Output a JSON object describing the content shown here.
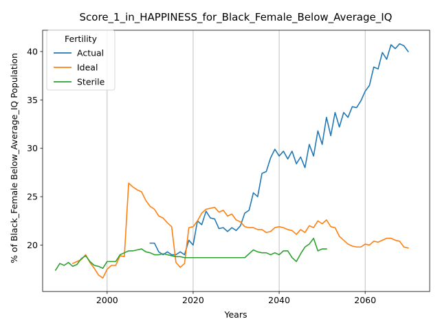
{
  "chart_data": {
    "type": "line",
    "title": "Score_1_in_HAPPINESS_for_Black_Female_Below_Average_IQ",
    "xlabel": "Years",
    "ylabel": "% of Black_Female Below_Average_IQ Population",
    "xlim": [
      1985,
      2075
    ],
    "ylim": [
      15.2,
      42.2
    ],
    "xticks": [
      2000,
      2020,
      2040,
      2060
    ],
    "yticks": [
      20,
      25,
      30,
      35,
      40
    ],
    "grid": "x-major",
    "legend": {
      "title": "Fertility",
      "placement": "top-left"
    },
    "colors": {
      "Actual": "#1f77b4",
      "Ideal": "#ff7f0e",
      "Sterile": "#2ca02c"
    },
    "series": [
      {
        "name": "Actual",
        "x": [
          2010,
          2011,
          2012,
          2013,
          2014,
          2015,
          2016,
          2017,
          2018,
          2019,
          2020,
          2021,
          2022,
          2023,
          2024,
          2025,
          2026,
          2027,
          2028,
          2029,
          2030,
          2031,
          2032,
          2033,
          2034,
          2035,
          2036,
          2037,
          2038,
          2039,
          2040,
          2041,
          2042,
          2043,
          2044,
          2045,
          2046,
          2047,
          2048,
          2049,
          2050,
          2051,
          2052,
          2053,
          2054,
          2055,
          2056,
          2057,
          2058,
          2059,
          2060,
          2061,
          2062,
          2063,
          2064,
          2065,
          2066,
          2067,
          2068,
          2069,
          2070
        ],
        "values": [
          20.2,
          20.2,
          19.3,
          19.0,
          19.3,
          19.0,
          19.0,
          19.3,
          19.0,
          20.5,
          20.0,
          22.5,
          22.1,
          23.5,
          22.8,
          22.7,
          21.7,
          21.8,
          21.4,
          21.8,
          21.5,
          22.0,
          23.3,
          23.6,
          25.4,
          25.0,
          27.4,
          27.6,
          29.0,
          29.9,
          29.2,
          29.7,
          28.9,
          29.7,
          28.4,
          29.1,
          28.0,
          30.4,
          29.2,
          31.8,
          30.4,
          33.2,
          31.3,
          33.7,
          32.2,
          33.7,
          33.2,
          34.3,
          34.2,
          34.9,
          35.9,
          36.5,
          38.4,
          38.2,
          39.9,
          39.2,
          40.7,
          40.3,
          40.8,
          40.6,
          40.0
        ]
      },
      {
        "name": "Ideal",
        "x": [
          1992,
          1993,
          1994,
          1995,
          1996,
          1997,
          1998,
          1999,
          2000,
          2001,
          2002,
          2003,
          2004,
          2005,
          2006,
          2007,
          2008,
          2009,
          2010,
          2011,
          2012,
          2013,
          2014,
          2015,
          2016,
          2017,
          2018,
          2019,
          2020,
          2021,
          2022,
          2023,
          2024,
          2025,
          2026,
          2027,
          2028,
          2029,
          2030,
          2031,
          2032,
          2033,
          2034,
          2035,
          2036,
          2037,
          2038,
          2039,
          2040,
          2041,
          2042,
          2043,
          2044,
          2045,
          2046,
          2047,
          2048,
          2049,
          2050,
          2051,
          2052,
          2053,
          2054,
          2055,
          2056,
          2057,
          2058,
          2059,
          2060,
          2061,
          2062,
          2063,
          2064,
          2065,
          2066,
          2067,
          2068,
          2069,
          2070
        ],
        "values": [
          18.1,
          18.3,
          18.5,
          19.0,
          18.2,
          17.6,
          16.9,
          16.6,
          17.5,
          17.9,
          17.9,
          18.9,
          18.8,
          26.4,
          26.0,
          25.7,
          25.5,
          24.6,
          24.0,
          23.7,
          23.0,
          22.8,
          22.3,
          21.9,
          18.2,
          17.7,
          18.1,
          21.8,
          21.9,
          22.5,
          23.3,
          23.7,
          23.8,
          23.9,
          23.4,
          23.6,
          23.0,
          23.2,
          22.6,
          22.4,
          21.9,
          21.8,
          21.8,
          21.6,
          21.6,
          21.3,
          21.4,
          21.8,
          21.9,
          21.8,
          21.6,
          21.5,
          21.1,
          21.6,
          21.3,
          22.0,
          21.8,
          22.5,
          22.2,
          22.6,
          21.9,
          21.8,
          20.9,
          20.5,
          20.1,
          19.9,
          19.8,
          19.8,
          20.1,
          20.0,
          20.4,
          20.3,
          20.5,
          20.7,
          20.7,
          20.5,
          20.4,
          19.8,
          19.7
        ]
      },
      {
        "name": "Sterile",
        "x": [
          1988,
          1989,
          1990,
          1991,
          1992,
          1993,
          1994,
          1995,
          1996,
          1997,
          1998,
          1999,
          2000,
          2001,
          2002,
          2003,
          2004,
          2005,
          2006,
          2007,
          2008,
          2009,
          2010,
          2011,
          2012,
          2013,
          2014,
          2015,
          2016,
          2017,
          2018,
          2019,
          2020,
          2021,
          2022,
          2023,
          2024,
          2025,
          2026,
          2027,
          2028,
          2029,
          2030,
          2031,
          2032,
          2033,
          2034,
          2035,
          2036,
          2037,
          2038,
          2039,
          2040,
          2041,
          2042,
          2043,
          2044,
          2045,
          2046,
          2047,
          2048,
          2049,
          2050,
          2051
        ],
        "values": [
          17.4,
          18.1,
          17.9,
          18.2,
          17.8,
          18.0,
          18.6,
          18.9,
          18.3,
          17.9,
          17.8,
          17.6,
          18.3,
          18.3,
          18.3,
          19.0,
          19.2,
          19.4,
          19.4,
          19.5,
          19.6,
          19.3,
          19.2,
          19.0,
          19.0,
          19.1,
          19.0,
          18.9,
          18.8,
          18.8,
          18.7,
          18.7,
          18.7,
          18.7,
          18.7,
          18.7,
          18.7,
          18.7,
          18.7,
          18.7,
          18.7,
          18.7,
          18.7,
          18.7,
          18.7,
          19.1,
          19.5,
          19.3,
          19.2,
          19.2,
          19.0,
          19.2,
          19.0,
          19.4,
          19.4,
          18.7,
          18.3,
          19.1,
          19.8,
          20.1,
          20.7,
          19.4,
          19.6,
          19.6
        ]
      }
    ]
  }
}
